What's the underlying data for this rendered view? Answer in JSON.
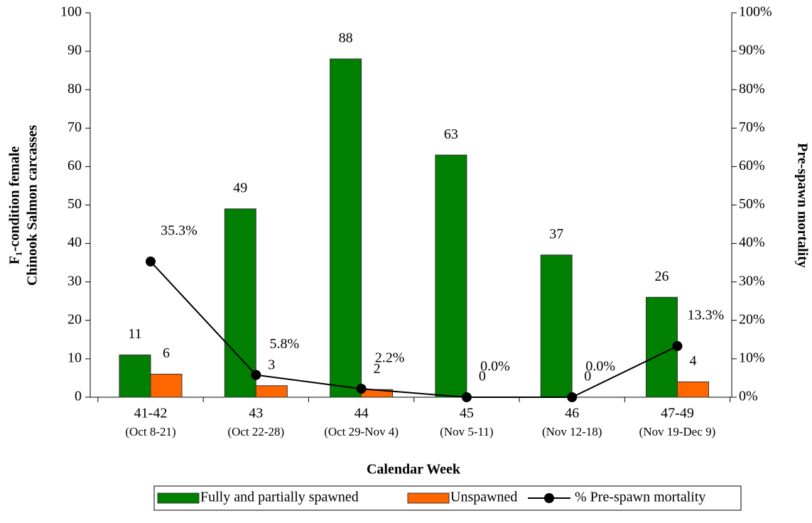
{
  "chart_data": {
    "type": "bar",
    "categories": [
      "41-42",
      "43",
      "44",
      "45",
      "46",
      "47-49"
    ],
    "category_sublabels": [
      "(Oct 8-21)",
      "(Oct 22-28)",
      "(Oct 29-Nov 4)",
      "(Nov 5-11)",
      "(Nov 12-18)",
      "(Nov 19-Dec 9)"
    ],
    "x_label": "Calendar Week",
    "y_label": [
      "F₁-condition  female",
      "Chinook Salmon carcasses"
    ],
    "y2_label": "Pre-spawn  mortality",
    "ylim": [
      0,
      100
    ],
    "yticks": [
      0,
      10,
      20,
      30,
      40,
      50,
      60,
      70,
      80,
      90,
      100
    ],
    "y2lim": [
      0,
      100
    ],
    "y2ticks": [
      {
        "value": 0,
        "label": "0%"
      },
      {
        "value": 10,
        "label": "10%"
      },
      {
        "value": 20,
        "label": "20%"
      },
      {
        "value": 30,
        "label": "30%"
      },
      {
        "value": 40,
        "label": "40%"
      },
      {
        "value": 50,
        "label": "50%"
      },
      {
        "value": 60,
        "label": "60%"
      },
      {
        "value": 70,
        "label": "70%"
      },
      {
        "value": 80,
        "label": "80%"
      },
      {
        "value": 90,
        "label": "90%"
      },
      {
        "value": 100,
        "label": "100%"
      }
    ],
    "series": [
      {
        "name": "Fully and partially spawned",
        "color": "#008000",
        "values": [
          11,
          49,
          88,
          63,
          37,
          26
        ]
      },
      {
        "name": "Unspawned",
        "color": "#ff6600",
        "values": [
          6,
          3,
          2,
          0,
          0,
          4
        ]
      },
      {
        "name": "% Pre-spawn mortality",
        "color": "#000000",
        "type": "line",
        "axis": "y2",
        "values": [
          35.3,
          5.8,
          2.2,
          0,
          0,
          13.3
        ],
        "value_labels": [
          "35.3%",
          "5.8%",
          "2.2%",
          "0.0%",
          "0.0%",
          "13.3%"
        ]
      }
    ]
  }
}
